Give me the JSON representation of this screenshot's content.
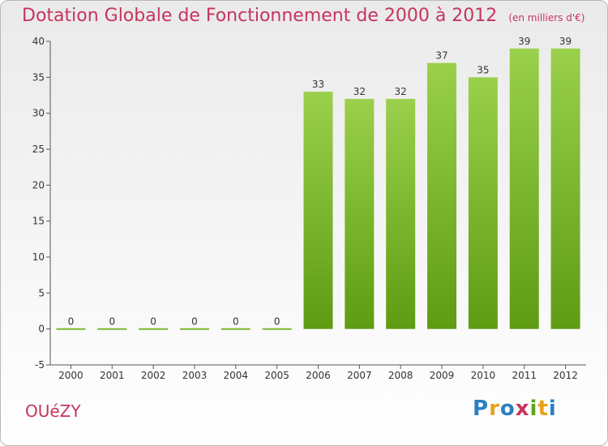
{
  "header": {
    "title": "Dotation Globale de Fonctionnement de 2000 à 2012",
    "subtitle": "(en milliers d'€)"
  },
  "footer": {
    "commune": "OUéZY",
    "logo": "Proxiti"
  },
  "colors": {
    "accent": "#c6345e",
    "bar_light": "#9ad04c",
    "bar_dark": "#5e9c12"
  },
  "chart_data": {
    "type": "bar",
    "title": "Dotation Globale de Fonctionnement de 2000 à 2012",
    "subtitle": "(en milliers d'€)",
    "xlabel": "",
    "ylabel": "",
    "categories": [
      "2000",
      "2001",
      "2002",
      "2003",
      "2004",
      "2005",
      "2006",
      "2007",
      "2008",
      "2009",
      "2010",
      "2011",
      "2012"
    ],
    "values": [
      0,
      0,
      0,
      0,
      0,
      0,
      33,
      32,
      32,
      37,
      35,
      39,
      39
    ],
    "data_labels": [
      "0",
      "0",
      "0",
      "0",
      "0",
      "0",
      "33",
      "32",
      "32",
      "37",
      "35",
      "39",
      "39"
    ],
    "ylim": [
      -5,
      40
    ],
    "yticks": [
      -5,
      0,
      5,
      10,
      15,
      20,
      25,
      30,
      35,
      40
    ],
    "ytick_labels": [
      "-5",
      "0",
      "5",
      "10",
      "15",
      "20",
      "25",
      "30",
      "35",
      "40"
    ],
    "grid": false,
    "legend": "none"
  }
}
